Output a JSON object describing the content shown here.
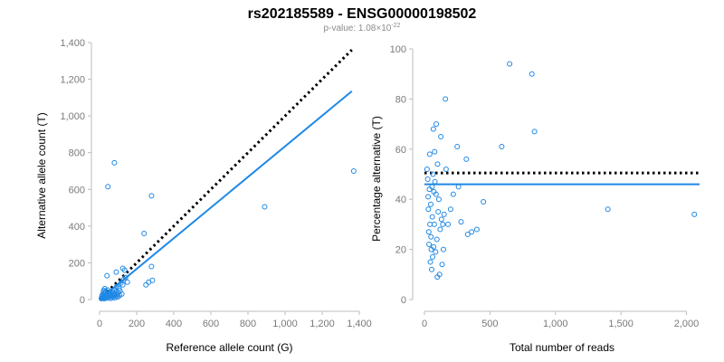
{
  "title": "rs202185589 - ENSG00000198502",
  "subtitle": {
    "prefix": "p-value: 1.08×10",
    "exponent": "-22"
  },
  "colors": {
    "points": "#1e88e5",
    "fit": "#1e88e5",
    "reference": "#000000",
    "axis": "#bdbdbd",
    "tick_text": "#7a7a7a"
  },
  "chart_data": [
    {
      "type": "scatter",
      "name": "allele-counts",
      "xlabel": "Reference allele count (G)",
      "ylabel": "Alternative allele count (T)",
      "xlim": [
        0,
        1400
      ],
      "ylim": [
        0,
        1400
      ],
      "xticks": [
        0,
        200,
        400,
        600,
        800,
        1000,
        1200,
        1400
      ],
      "xtick_labels": [
        "0",
        "200",
        "400",
        "600",
        "800",
        "1,000",
        "1,200",
        "1,400"
      ],
      "yticks": [
        0,
        200,
        400,
        600,
        800,
        1000,
        1200,
        1400
      ],
      "ytick_labels": [
        "0",
        "200",
        "400",
        "600",
        "800",
        "1,000",
        "1,200",
        "1,400"
      ],
      "points": [
        [
          10,
          5
        ],
        [
          12,
          15
        ],
        [
          14,
          22
        ],
        [
          16,
          8
        ],
        [
          18,
          30
        ],
        [
          20,
          12
        ],
        [
          22,
          40
        ],
        [
          24,
          18
        ],
        [
          25,
          5
        ],
        [
          27,
          26
        ],
        [
          28,
          10
        ],
        [
          30,
          35
        ],
        [
          32,
          14
        ],
        [
          34,
          45
        ],
        [
          36,
          20
        ],
        [
          38,
          8
        ],
        [
          40,
          28
        ],
        [
          42,
          16
        ],
        [
          44,
          52
        ],
        [
          46,
          10
        ],
        [
          48,
          33
        ],
        [
          50,
          22
        ],
        [
          52,
          14
        ],
        [
          55,
          40
        ],
        [
          58,
          25
        ],
        [
          60,
          6
        ],
        [
          62,
          30
        ],
        [
          65,
          18
        ],
        [
          68,
          48
        ],
        [
          70,
          12
        ],
        [
          72,
          36
        ],
        [
          75,
          20
        ],
        [
          78,
          28
        ],
        [
          80,
          55
        ],
        [
          82,
          10
        ],
        [
          85,
          32
        ],
        [
          88,
          18
        ],
        [
          90,
          42
        ],
        [
          92,
          70
        ],
        [
          95,
          26
        ],
        [
          98,
          14
        ],
        [
          100,
          38
        ],
        [
          105,
          60
        ],
        [
          108,
          22
        ],
        [
          110,
          48
        ],
        [
          115,
          90
        ],
        [
          120,
          30
        ],
        [
          125,
          80
        ],
        [
          130,
          110
        ],
        [
          135,
          160
        ],
        [
          140,
          120
        ],
        [
          150,
          95
        ],
        [
          40,
          130
        ],
        [
          28,
          60
        ],
        [
          22,
          50
        ],
        [
          90,
          150
        ],
        [
          125,
          170
        ],
        [
          80,
          745
        ],
        [
          45,
          615
        ],
        [
          280,
          565
        ],
        [
          240,
          360
        ],
        [
          280,
          180
        ],
        [
          250,
          80
        ],
        [
          265,
          95
        ],
        [
          285,
          105
        ],
        [
          890,
          505
        ],
        [
          1370,
          700
        ]
      ],
      "fit_line": [
        [
          0,
          0
        ],
        [
          1360,
          1135
        ]
      ],
      "reference_line": [
        [
          0,
          0
        ],
        [
          1360,
          1360
        ]
      ]
    },
    {
      "type": "scatter",
      "name": "percentage-alternative",
      "xlabel": "Total number of reads",
      "ylabel": "Percentage alternative (T)",
      "xlim": [
        0,
        2100
      ],
      "ylim": [
        0,
        100
      ],
      "xticks": [
        0,
        500,
        1000,
        1500,
        2000
      ],
      "xtick_labels": [
        "0",
        "500",
        "1,000",
        "1,500",
        "2,000"
      ],
      "yticks": [
        0,
        20,
        40,
        60,
        80,
        100
      ],
      "ytick_labels": [
        "0",
        "20",
        "40",
        "60",
        "80",
        "100"
      ],
      "points": [
        [
          20,
          52
        ],
        [
          25,
          48
        ],
        [
          28,
          41
        ],
        [
          30,
          36
        ],
        [
          33,
          27
        ],
        [
          35,
          22
        ],
        [
          38,
          44
        ],
        [
          40,
          58
        ],
        [
          42,
          30
        ],
        [
          45,
          15
        ],
        [
          48,
          38
        ],
        [
          50,
          25
        ],
        [
          52,
          20
        ],
        [
          55,
          12
        ],
        [
          58,
          45
        ],
        [
          60,
          33
        ],
        [
          62,
          17
        ],
        [
          65,
          50
        ],
        [
          68,
          68
        ],
        [
          70,
          21
        ],
        [
          72,
          43
        ],
        [
          75,
          30
        ],
        [
          78,
          59
        ],
        [
          80,
          47
        ],
        [
          85,
          19
        ],
        [
          88,
          42
        ],
        [
          90,
          70
        ],
        [
          95,
          24
        ],
        [
          98,
          9
        ],
        [
          100,
          54
        ],
        [
          105,
          35
        ],
        [
          110,
          40
        ],
        [
          115,
          10
        ],
        [
          120,
          28
        ],
        [
          125,
          65
        ],
        [
          130,
          32
        ],
        [
          135,
          14
        ],
        [
          140,
          30
        ],
        [
          145,
          20
        ],
        [
          150,
          34
        ],
        [
          160,
          80
        ],
        [
          165,
          52
        ],
        [
          180,
          30
        ],
        [
          200,
          36
        ],
        [
          220,
          42
        ],
        [
          250,
          61
        ],
        [
          260,
          45
        ],
        [
          280,
          31
        ],
        [
          320,
          56
        ],
        [
          330,
          26
        ],
        [
          360,
          27
        ],
        [
          400,
          28
        ],
        [
          450,
          39
        ],
        [
          590,
          61
        ],
        [
          650,
          94
        ],
        [
          820,
          90
        ],
        [
          840,
          67
        ],
        [
          1400,
          36
        ],
        [
          2060,
          34
        ]
      ],
      "fit_line": [
        [
          0,
          46
        ],
        [
          2100,
          46
        ]
      ],
      "reference_line": [
        [
          0,
          50.5
        ],
        [
          2100,
          50.5
        ]
      ]
    }
  ]
}
